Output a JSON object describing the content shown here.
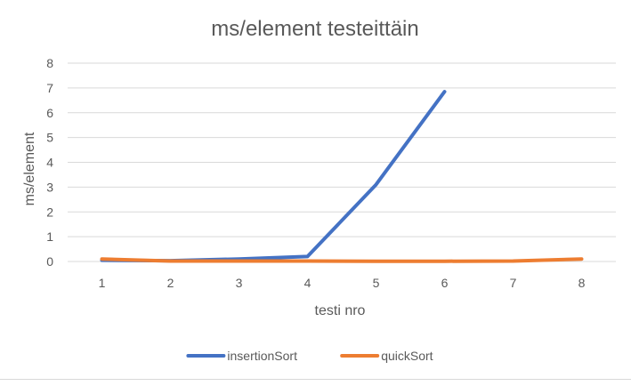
{
  "chart_data": {
    "type": "line",
    "title": "ms/element testeittäin",
    "xlabel": "testi nro",
    "ylabel": "ms/element",
    "categories": [
      "1",
      "2",
      "3",
      "4",
      "5",
      "6",
      "7",
      "8"
    ],
    "ylim": [
      0,
      8
    ],
    "yticks": [
      "0",
      "1",
      "2",
      "3",
      "4",
      "5",
      "6",
      "7",
      "8"
    ],
    "grid": true,
    "legend_position": "bottom",
    "series": [
      {
        "name": "insertionSort",
        "color": "#4472C4",
        "values": [
          0.05,
          0.03,
          0.1,
          0.2,
          3.1,
          6.85,
          null,
          null
        ]
      },
      {
        "name": "quickSort",
        "color": "#ED7D31",
        "values": [
          0.1,
          0.02,
          0.02,
          0.02,
          0.01,
          0.01,
          0.02,
          0.1
        ]
      }
    ]
  }
}
